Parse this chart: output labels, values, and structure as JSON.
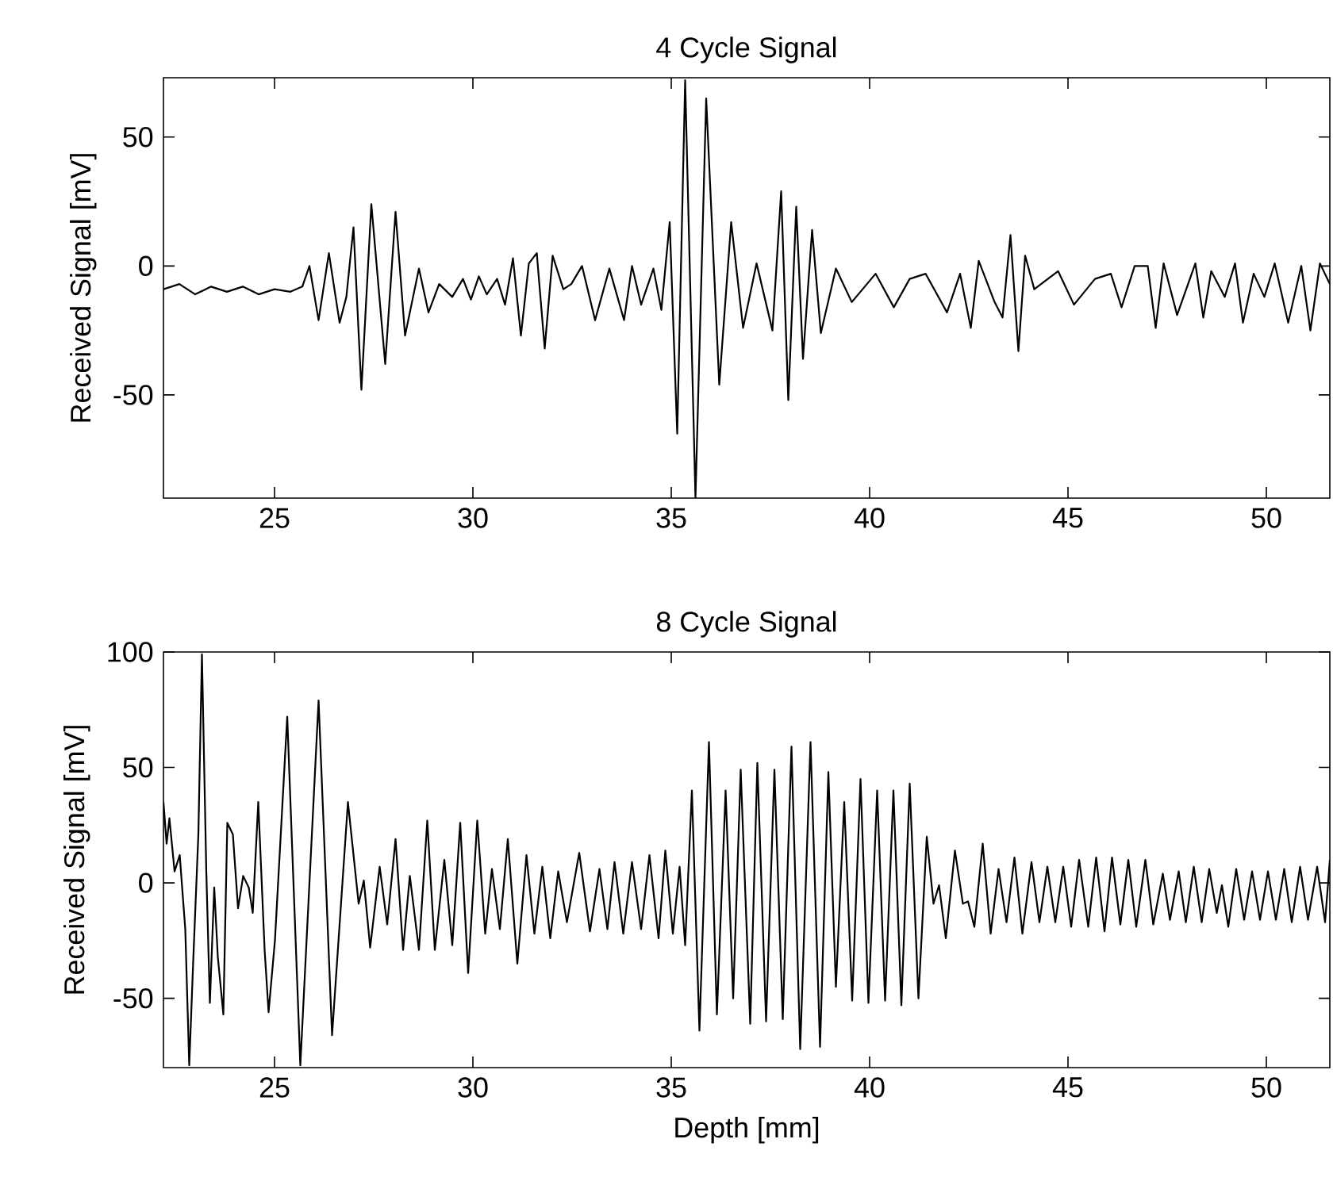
{
  "chart_data": [
    {
      "type": "line",
      "title": "4 Cycle Signal",
      "ylabel": "Received Signal [mV]",
      "color": "#000000",
      "xlim": [
        22.2,
        51.6
      ],
      "ylim": [
        -90,
        73
      ],
      "xticks": [
        25,
        30,
        35,
        40,
        45,
        50
      ],
      "yticks": [
        -50,
        0,
        50
      ],
      "x": [
        22.2,
        22.6,
        23.0,
        23.4,
        23.8,
        24.2,
        24.6,
        25.0,
        25.4,
        25.7,
        25.88,
        26.11,
        26.37,
        26.64,
        26.81,
        26.99,
        27.19,
        27.44,
        27.79,
        28.05,
        28.29,
        28.64,
        28.88,
        29.15,
        29.48,
        29.75,
        29.95,
        30.15,
        30.35,
        30.61,
        30.81,
        31.01,
        31.21,
        31.41,
        31.61,
        31.81,
        32.01,
        32.28,
        32.48,
        32.75,
        33.08,
        33.44,
        33.81,
        34.01,
        34.24,
        34.55,
        34.75,
        34.96,
        35.15,
        35.35,
        35.61,
        35.88,
        36.21,
        36.51,
        36.81,
        37.15,
        37.55,
        37.77,
        37.95,
        38.15,
        38.32,
        38.55,
        38.77,
        39.15,
        39.55,
        40.15,
        40.61,
        41.01,
        41.41,
        41.95,
        42.28,
        42.55,
        42.75,
        43.15,
        43.35,
        43.55,
        43.75,
        43.92,
        44.15,
        44.75,
        45.15,
        45.68,
        46.08,
        46.35,
        46.68,
        47.01,
        47.21,
        47.41,
        47.75,
        48.21,
        48.41,
        48.61,
        48.95,
        49.21,
        49.41,
        49.68,
        49.95,
        50.21,
        50.55,
        50.88,
        51.11,
        51.35,
        51.6
      ],
      "values": [
        -9,
        -7,
        -11,
        -8,
        -10,
        -8,
        -11,
        -9,
        -10,
        -8,
        0,
        -21,
        5,
        -22,
        -12,
        15,
        -48,
        24,
        -38,
        21,
        -27,
        -1,
        -18,
        -7,
        -12,
        -5,
        -13,
        -4,
        -11,
        -5,
        -15,
        3,
        -27,
        1,
        5,
        -32,
        4,
        -9,
        -7,
        0,
        -21,
        -1,
        -21,
        0,
        -15,
        -1,
        -17,
        17,
        -65,
        72,
        -90,
        65,
        -46,
        17,
        -24,
        1,
        -25,
        29,
        -52,
        23,
        -36,
        14,
        -26,
        -1,
        -14,
        -3,
        -16,
        -5,
        -3,
        -18,
        -3,
        -24,
        2,
        -14,
        -20,
        12,
        -33,
        4,
        -9,
        -2,
        -15,
        -5,
        -3,
        -16,
        0,
        0,
        -24,
        1,
        -19,
        1,
        -20,
        -2,
        -12,
        1,
        -22,
        -3,
        -12,
        1,
        -22,
        0,
        -25,
        1,
        -7
      ]
    },
    {
      "type": "line",
      "title": "8 Cycle Signal",
      "xlabel": "Depth [mm]",
      "ylabel": "Received Signal [mV]",
      "color": "#000000",
      "xlim": [
        22.2,
        51.6
      ],
      "ylim": [
        -80,
        100
      ],
      "xticks": [
        25,
        30,
        35,
        40,
        45,
        50
      ],
      "yticks": [
        -50,
        0,
        50,
        100
      ],
      "x": [
        22.2,
        22.28,
        22.35,
        22.48,
        22.61,
        22.75,
        22.85,
        22.95,
        23.08,
        23.17,
        23.28,
        23.37,
        23.48,
        23.57,
        23.71,
        23.81,
        23.95,
        24.08,
        24.21,
        24.35,
        24.45,
        24.59,
        24.75,
        24.85,
        25.01,
        25.32,
        25.65,
        26.11,
        26.45,
        26.85,
        27.12,
        27.25,
        27.41,
        27.65,
        27.84,
        28.05,
        28.24,
        28.41,
        28.64,
        28.85,
        29.04,
        29.28,
        29.48,
        29.68,
        29.88,
        30.11,
        30.31,
        30.48,
        30.68,
        30.88,
        31.12,
        31.35,
        31.55,
        31.75,
        31.95,
        32.15,
        32.37,
        32.68,
        32.95,
        33.19,
        33.39,
        33.57,
        33.79,
        34.01,
        34.24,
        34.45,
        34.68,
        34.85,
        35.04,
        35.21,
        35.35,
        35.52,
        35.71,
        35.95,
        36.15,
        36.37,
        36.56,
        36.75,
        36.99,
        37.17,
        37.39,
        37.6,
        37.81,
        38.03,
        38.25,
        38.51,
        38.75,
        38.96,
        39.15,
        39.36,
        39.56,
        39.77,
        39.97,
        40.19,
        40.39,
        40.6,
        40.8,
        41.01,
        41.23,
        41.44,
        41.61,
        41.75,
        41.92,
        42.15,
        42.35,
        42.48,
        42.64,
        42.85,
        43.05,
        43.25,
        43.45,
        43.65,
        43.85,
        44.08,
        44.28,
        44.48,
        44.68,
        44.88,
        45.08,
        45.28,
        45.51,
        45.71,
        45.92,
        46.11,
        46.32,
        46.52,
        46.72,
        46.95,
        47.15,
        47.39,
        47.57,
        47.79,
        47.97,
        48.17,
        48.37,
        48.56,
        48.75,
        48.88,
        49.04,
        49.24,
        49.44,
        49.64,
        49.84,
        50.04,
        50.24,
        50.45,
        50.64,
        50.85,
        51.05,
        51.28,
        51.48,
        51.6
      ],
      "values": [
        35,
        17,
        28,
        5,
        12,
        -20,
        -79,
        -34,
        21,
        99,
        5,
        -52,
        -2,
        -32,
        -57,
        26,
        21,
        -11,
        3,
        -2,
        -13,
        35,
        -29,
        -56,
        -25,
        72,
        -79,
        79,
        -66,
        35,
        -9,
        1,
        -28,
        7,
        -18,
        19,
        -29,
        3,
        -29,
        27,
        -29,
        10,
        -27,
        26,
        -39,
        27,
        -22,
        6,
        -20,
        19,
        -35,
        12,
        -22,
        7,
        -24,
        5,
        -17,
        13,
        -21,
        6,
        -20,
        9,
        -22,
        9,
        -20,
        12,
        -24,
        14,
        -22,
        7,
        -27,
        40,
        -64,
        61,
        -57,
        40,
        -50,
        49,
        -61,
        52,
        -60,
        49,
        -59,
        59,
        -72,
        61,
        -71,
        48,
        -45,
        35,
        -51,
        45,
        -52,
        40,
        -51,
        40,
        -53,
        43,
        -50,
        20,
        -9,
        -1,
        -24,
        14,
        -9,
        -8,
        -19,
        17,
        -22,
        6,
        -17,
        11,
        -22,
        9,
        -17,
        7,
        -17,
        7,
        -19,
        10,
        -19,
        11,
        -21,
        11,
        -18,
        10,
        -19,
        10,
        -18,
        4,
        -16,
        5,
        -17,
        7,
        -17,
        6,
        -13,
        -1,
        -19,
        6,
        -16,
        5,
        -16,
        5,
        -16,
        6,
        -17,
        7,
        -16,
        7,
        -17,
        10
      ]
    }
  ]
}
